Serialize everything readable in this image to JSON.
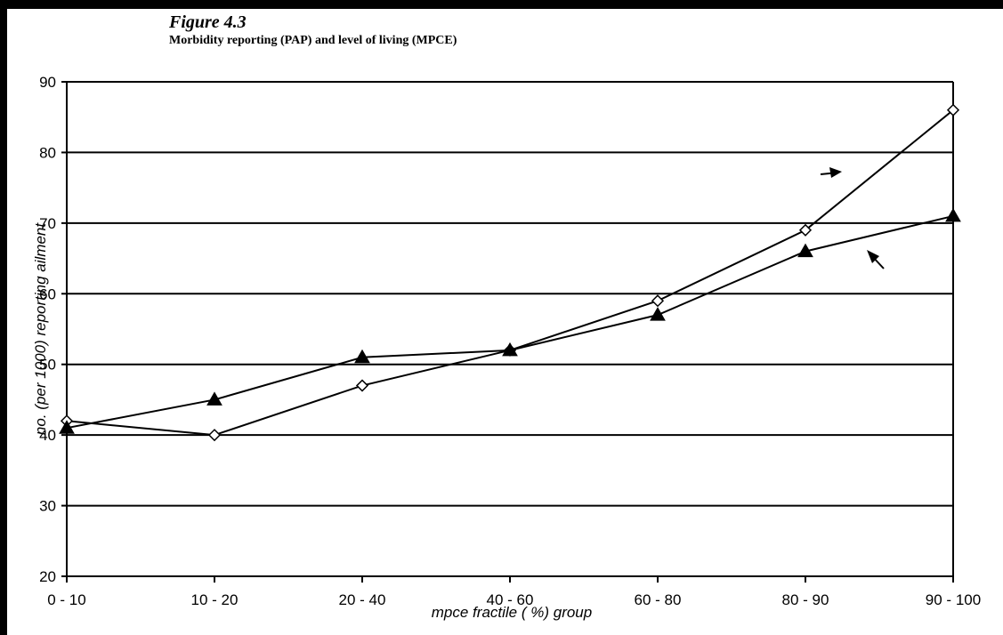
{
  "figure": {
    "title": "Figure 4.3",
    "subtitle": "Morbidity reporting (PAP)  and level of living (MPCE)"
  },
  "chart_data": {
    "type": "line",
    "title": "Figure 4.3",
    "subtitle": "Morbidity reporting (PAP)  and level of living (MPCE)",
    "xlabel": "mpce fractile ( %) group",
    "ylabel": "no. (per 1000) reporting ailment",
    "categories": [
      "0 - 10",
      "10 - 20",
      "20 - 40",
      "40 - 60",
      "60 - 80",
      "80 - 90",
      "90 - 100"
    ],
    "ylim": [
      20,
      90
    ],
    "yticks": [
      20,
      30,
      40,
      50,
      60,
      70,
      80,
      90
    ],
    "grid": true,
    "legend": "none",
    "series": [
      {
        "marker": "open-diamond",
        "color": "#000000",
        "values": [
          42,
          40,
          47,
          52,
          59,
          69,
          86
        ]
      },
      {
        "marker": "filled-triangle",
        "color": "#000000",
        "values": [
          41,
          45,
          51,
          52,
          57,
          66,
          71
        ]
      }
    ]
  }
}
